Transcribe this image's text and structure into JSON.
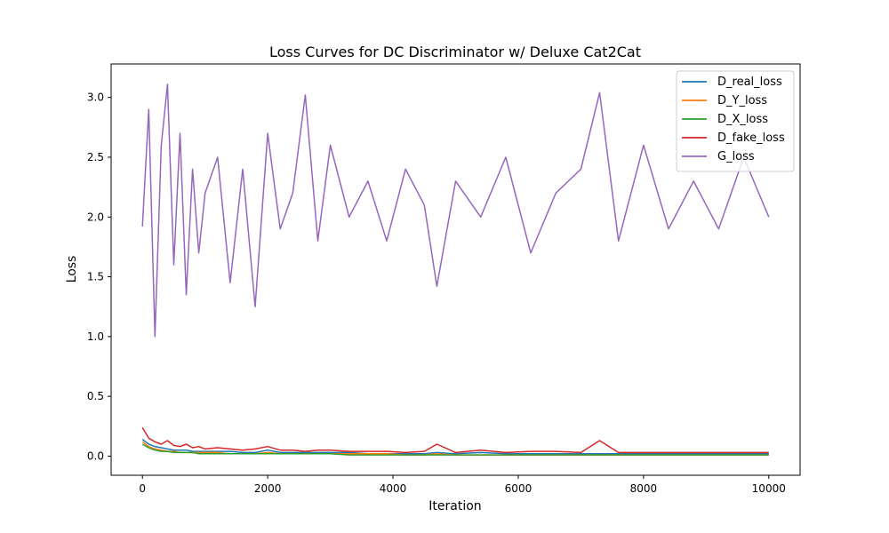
{
  "chart_data": {
    "type": "line",
    "title": "Loss Curves for DC Discriminator w/ Deluxe Cat2Cat",
    "xlabel": "Iteration",
    "ylabel": "Loss",
    "xlim": [
      -500,
      10500
    ],
    "ylim": [
      -0.16,
      3.28
    ],
    "x_ticks": [
      0,
      2000,
      4000,
      6000,
      8000,
      10000
    ],
    "y_ticks": [
      0.0,
      0.5,
      1.0,
      1.5,
      2.0,
      2.5,
      3.0
    ],
    "x_tick_labels": [
      "0",
      "2000",
      "4000",
      "6000",
      "8000",
      "10000"
    ],
    "y_tick_labels": [
      "0.0",
      "0.5",
      "1.0",
      "1.5",
      "2.0",
      "2.5",
      "3.0"
    ],
    "grid": false,
    "legend_position": "top-right",
    "x": [
      0,
      100,
      200,
      300,
      400,
      500,
      600,
      700,
      800,
      900,
      1000,
      1200,
      1400,
      1600,
      1800,
      2000,
      2200,
      2400,
      2600,
      2800,
      3000,
      3300,
      3600,
      3900,
      4200,
      4500,
      4700,
      5000,
      5400,
      5800,
      6200,
      6600,
      7000,
      7300,
      7600,
      8000,
      8400,
      8800,
      9200,
      9600,
      10000
    ],
    "series": [
      {
        "name": "D_real_loss",
        "color": "#1f77b4",
        "values": [
          0.14,
          0.1,
          0.08,
          0.07,
          0.06,
          0.05,
          0.05,
          0.05,
          0.04,
          0.04,
          0.04,
          0.04,
          0.04,
          0.03,
          0.03,
          0.05,
          0.03,
          0.03,
          0.03,
          0.03,
          0.03,
          0.03,
          0.02,
          0.02,
          0.02,
          0.02,
          0.03,
          0.02,
          0.03,
          0.02,
          0.02,
          0.02,
          0.02,
          0.02,
          0.02,
          0.02,
          0.02,
          0.02,
          0.02,
          0.02,
          0.02
        ]
      },
      {
        "name": "D_Y_loss",
        "color": "#ff7f0e",
        "values": [
          0.12,
          0.08,
          0.06,
          0.05,
          0.04,
          0.04,
          0.03,
          0.03,
          0.03,
          0.03,
          0.03,
          0.03,
          0.02,
          0.02,
          0.02,
          0.03,
          0.02,
          0.02,
          0.02,
          0.02,
          0.02,
          0.02,
          0.02,
          0.02,
          0.01,
          0.01,
          0.02,
          0.01,
          0.01,
          0.01,
          0.01,
          0.01,
          0.01,
          0.01,
          0.01,
          0.01,
          0.01,
          0.01,
          0.01,
          0.01,
          0.01
        ]
      },
      {
        "name": "D_X_loss",
        "color": "#2ca02c",
        "values": [
          0.1,
          0.07,
          0.05,
          0.04,
          0.04,
          0.03,
          0.03,
          0.03,
          0.03,
          0.02,
          0.02,
          0.02,
          0.02,
          0.02,
          0.02,
          0.02,
          0.02,
          0.02,
          0.02,
          0.02,
          0.02,
          0.01,
          0.01,
          0.01,
          0.01,
          0.01,
          0.01,
          0.01,
          0.01,
          0.01,
          0.01,
          0.01,
          0.01,
          0.01,
          0.01,
          0.01,
          0.01,
          0.01,
          0.01,
          0.01,
          0.01
        ]
      },
      {
        "name": "D_fake_loss",
        "color": "#d62728",
        "values": [
          0.24,
          0.15,
          0.12,
          0.1,
          0.13,
          0.09,
          0.08,
          0.1,
          0.07,
          0.08,
          0.06,
          0.07,
          0.06,
          0.05,
          0.06,
          0.08,
          0.05,
          0.05,
          0.04,
          0.05,
          0.05,
          0.04,
          0.04,
          0.04,
          0.03,
          0.04,
          0.1,
          0.03,
          0.05,
          0.03,
          0.04,
          0.04,
          0.03,
          0.13,
          0.03,
          0.03,
          0.03,
          0.03,
          0.03,
          0.03,
          0.03
        ]
      },
      {
        "name": "G_loss",
        "color": "#9467bd",
        "values": [
          1.92,
          2.9,
          1.0,
          2.6,
          3.11,
          1.6,
          2.7,
          1.35,
          2.4,
          1.7,
          2.2,
          2.5,
          1.45,
          2.4,
          1.25,
          2.7,
          1.9,
          2.2,
          3.02,
          1.8,
          2.6,
          2.0,
          2.3,
          1.8,
          2.4,
          2.1,
          1.42,
          2.3,
          2.0,
          2.5,
          1.7,
          2.2,
          2.4,
          3.04,
          1.8,
          2.6,
          1.9,
          2.3,
          1.9,
          2.5,
          2.0
        ]
      }
    ]
  }
}
